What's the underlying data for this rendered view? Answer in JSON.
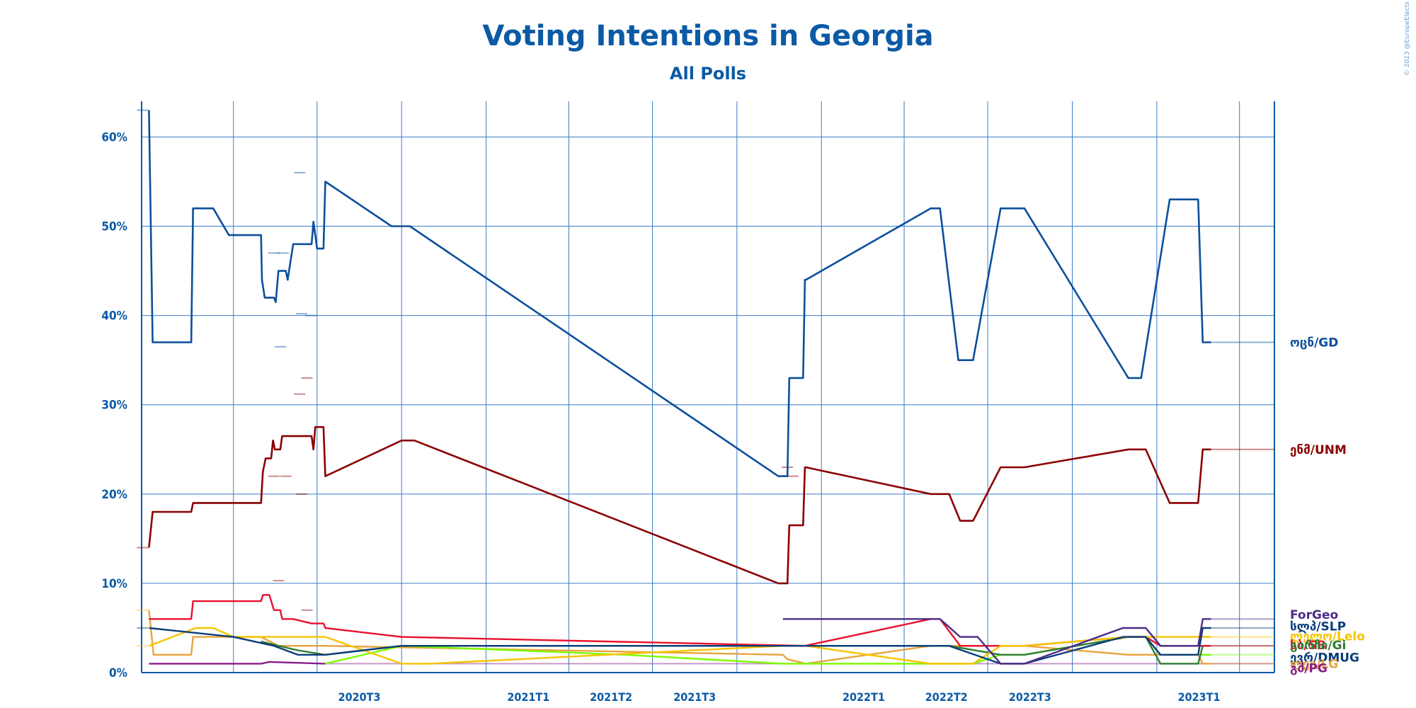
{
  "chart_data": {
    "type": "line",
    "title": "Voting Intentions in Georgia",
    "subtitle": "All Polls",
    "credit": "© 2023 @EuropeElects",
    "y_ticks": [
      "0%",
      "10%",
      "20%",
      "30%",
      "40%",
      "50%",
      "60%"
    ],
    "ylim": [
      0,
      64
    ],
    "x_ticks": [
      "2020T3",
      "2021T1",
      "2021T2",
      "2021T3",
      "2022T1",
      "2022T2",
      "2022T3",
      "2023T1"
    ],
    "x_tick_dates": [
      "2020-07-01",
      "2021-01-01",
      "2021-04-01",
      "2021-07-01",
      "2022-01-01",
      "2022-04-01",
      "2022-07-01",
      "2023-01-01"
    ],
    "x_gridline_dates": [
      "2020-04-01",
      "2020-07-01",
      "2020-10-01",
      "2021-01-01",
      "2021-04-01",
      "2021-07-01",
      "2021-10-01",
      "2022-01-01",
      "2022-04-01",
      "2022-07-01",
      "2022-10-01",
      "2023-01-01",
      "2023-04-01"
    ],
    "xlim": [
      "2019-12-23",
      "2023-05-09"
    ],
    "grid": true,
    "series": [
      {
        "name": "ოცნ/GD",
        "color": "#0b4f9c",
        "points": [
          [
            "2019-12-31",
            63
          ],
          [
            "2020-01-04",
            37
          ],
          [
            "2020-02-15",
            37
          ],
          [
            "2020-02-17",
            52
          ],
          [
            "2020-03-10",
            52
          ],
          [
            "2020-03-27",
            49
          ],
          [
            "2020-05-01",
            49
          ],
          [
            "2020-05-02",
            44
          ],
          [
            "2020-05-05",
            42
          ],
          [
            "2020-05-15",
            42
          ],
          [
            "2020-05-17",
            41.5
          ],
          [
            "2020-05-20",
            45
          ],
          [
            "2020-05-28",
            45
          ],
          [
            "2020-05-30",
            44
          ],
          [
            "2020-06-05",
            48
          ],
          [
            "2020-06-25",
            48
          ],
          [
            "2020-06-27",
            50.5
          ],
          [
            "2020-07-01",
            47.5
          ],
          [
            "2020-07-08",
            47.5
          ],
          [
            "2020-07-10",
            55
          ],
          [
            "2020-09-20",
            50
          ],
          [
            "2020-10-10",
            50
          ],
          [
            "2021-11-15",
            22
          ],
          [
            "2021-11-25",
            22
          ],
          [
            "2021-11-27",
            33
          ],
          [
            "2021-12-12",
            33
          ],
          [
            "2021-12-14",
            44
          ],
          [
            "2021-12-15",
            44
          ],
          [
            "2022-04-30",
            52
          ],
          [
            "2022-05-10",
            52
          ],
          [
            "2022-05-30",
            35
          ],
          [
            "2022-06-15",
            35
          ],
          [
            "2022-07-15",
            52
          ],
          [
            "2022-08-10",
            52
          ],
          [
            "2022-12-01",
            33
          ],
          [
            "2022-12-15",
            33
          ],
          [
            "2023-01-15",
            53
          ],
          [
            "2023-02-15",
            53
          ],
          [
            "2023-02-20",
            37
          ],
          [
            "2023-03-01",
            37
          ]
        ]
      },
      {
        "name": "ენმ/UNM",
        "color": "#8b0000",
        "points": [
          [
            "2019-12-31",
            14
          ],
          [
            "2020-01-04",
            18
          ],
          [
            "2020-02-15",
            18
          ],
          [
            "2020-02-17",
            19
          ],
          [
            "2020-05-01",
            19
          ],
          [
            "2020-05-03",
            22.5
          ],
          [
            "2020-05-06",
            24
          ],
          [
            "2020-05-12",
            24
          ],
          [
            "2020-05-14",
            26
          ],
          [
            "2020-05-16",
            25
          ],
          [
            "2020-05-22",
            25
          ],
          [
            "2020-05-24",
            26.5
          ],
          [
            "2020-06-05",
            26.5
          ],
          [
            "2020-06-25",
            26.5
          ],
          [
            "2020-06-27",
            25
          ],
          [
            "2020-06-29",
            27.5
          ],
          [
            "2020-07-08",
            27.5
          ],
          [
            "2020-07-10",
            22
          ],
          [
            "2020-10-01",
            26
          ],
          [
            "2020-10-15",
            26
          ],
          [
            "2021-11-15",
            10
          ],
          [
            "2021-11-25",
            10
          ],
          [
            "2021-11-27",
            16.5
          ],
          [
            "2021-12-12",
            16.5
          ],
          [
            "2021-12-14",
            23
          ],
          [
            "2021-12-15",
            23
          ],
          [
            "2022-04-30",
            20
          ],
          [
            "2022-05-20",
            20
          ],
          [
            "2022-06-01",
            17
          ],
          [
            "2022-06-15",
            17
          ],
          [
            "2022-07-15",
            23
          ],
          [
            "2022-08-10",
            23
          ],
          [
            "2022-12-01",
            25
          ],
          [
            "2022-12-20",
            25
          ],
          [
            "2023-01-15",
            19
          ],
          [
            "2023-02-15",
            19
          ],
          [
            "2023-02-20",
            25
          ],
          [
            "2023-03-01",
            25
          ]
        ]
      },
      {
        "name": "ForGeo",
        "color": "#4b2c88",
        "points": [
          [
            "2021-11-20",
            6
          ],
          [
            "2022-05-10",
            6
          ],
          [
            "2022-06-01",
            4
          ],
          [
            "2022-06-20",
            4
          ],
          [
            "2022-07-15",
            1
          ],
          [
            "2022-08-10",
            1
          ],
          [
            "2022-11-25",
            5
          ],
          [
            "2022-12-20",
            5
          ],
          [
            "2023-01-05",
            3
          ],
          [
            "2023-02-15",
            3
          ],
          [
            "2023-02-20",
            6
          ],
          [
            "2023-03-01",
            6
          ]
        ]
      },
      {
        "name": "სლპ/SLP",
        "color": "#0b3d7a",
        "points": [
          [
            "2019-12-31",
            5
          ],
          [
            "2020-04-01",
            4
          ],
          [
            "2020-05-15",
            3
          ],
          [
            "2020-06-10",
            2
          ],
          [
            "2020-07-10",
            2
          ],
          [
            "2020-10-01",
            3
          ],
          [
            "2022-05-20",
            3
          ],
          [
            "2022-07-15",
            1
          ],
          [
            "2022-08-10",
            1
          ],
          [
            "2022-11-25",
            4
          ],
          [
            "2022-12-20",
            4
          ],
          [
            "2023-01-05",
            2
          ],
          [
            "2023-02-15",
            2
          ],
          [
            "2023-02-20",
            5
          ],
          [
            "2023-03-01",
            5
          ]
        ]
      },
      {
        "name": "ლელო/Lelo",
        "color": "#f5c400",
        "points": [
          [
            "2019-12-31",
            3
          ],
          [
            "2020-02-20",
            5
          ],
          [
            "2020-03-10",
            5
          ],
          [
            "2020-04-01",
            4
          ],
          [
            "2020-06-01",
            4
          ],
          [
            "2020-07-10",
            4
          ],
          [
            "2020-10-01",
            1
          ],
          [
            "2020-11-01",
            1
          ],
          [
            "2021-11-20",
            3
          ],
          [
            "2021-12-15",
            3
          ],
          [
            "2022-04-30",
            1
          ],
          [
            "2022-06-15",
            1
          ],
          [
            "2022-07-15",
            3
          ],
          [
            "2022-08-10",
            3
          ],
          [
            "2022-12-01",
            4
          ],
          [
            "2022-12-20",
            4
          ],
          [
            "2023-01-15",
            4
          ],
          [
            "2023-03-01",
            4
          ]
        ]
      },
      {
        "name": "სბ/SB",
        "color": "#e8112d",
        "points": [
          [
            "2019-12-31",
            6
          ],
          [
            "2020-02-15",
            6
          ],
          [
            "2020-02-17",
            8
          ],
          [
            "2020-05-01",
            8
          ],
          [
            "2020-05-03",
            8.7
          ],
          [
            "2020-05-10",
            8.7
          ],
          [
            "2020-05-15",
            7
          ],
          [
            "2020-05-22",
            7
          ],
          [
            "2020-05-24",
            6
          ],
          [
            "2020-06-05",
            6
          ],
          [
            "2020-06-25",
            5.5
          ],
          [
            "2020-07-08",
            5.5
          ],
          [
            "2020-07-10",
            5
          ],
          [
            "2020-10-01",
            4
          ],
          [
            "2021-12-14",
            3
          ],
          [
            "2022-04-30",
            6
          ],
          [
            "2022-05-10",
            6
          ],
          [
            "2022-06-01",
            3
          ],
          [
            "2022-08-10",
            3
          ],
          [
            "2022-12-01",
            4
          ],
          [
            "2022-12-20",
            4
          ],
          [
            "2023-01-05",
            3
          ],
          [
            "2023-03-01",
            3
          ]
        ]
      },
      {
        "name": "გირჩი/Gi",
        "color": "#2e7d32",
        "points": [
          [
            "2020-05-01",
            3.5
          ],
          [
            "2020-05-20",
            3
          ],
          [
            "2020-06-10",
            2.5
          ],
          [
            "2020-07-10",
            2
          ],
          [
            "2020-10-01",
            3
          ],
          [
            "2022-05-20",
            3
          ],
          [
            "2022-07-15",
            2
          ],
          [
            "2022-08-10",
            2
          ],
          [
            "2022-12-01",
            4
          ],
          [
            "2022-12-20",
            4
          ],
          [
            "2023-01-05",
            1
          ],
          [
            "2023-02-15",
            1
          ],
          [
            "2023-02-20",
            3
          ],
          [
            "2023-03-01",
            3
          ]
        ]
      },
      {
        "name": "ევრ/DMUG",
        "color": "#7cfc00",
        "points": [
          [
            "2020-07-10",
            1
          ],
          [
            "2020-10-01",
            3
          ],
          [
            "2021-06-01",
            2
          ],
          [
            "2021-11-20",
            1
          ],
          [
            "2022-06-15",
            1
          ],
          [
            "2022-07-15",
            2
          ],
          [
            "2022-08-10",
            2
          ],
          [
            "2022-12-01",
            4
          ],
          [
            "2022-12-20",
            4
          ],
          [
            "2023-01-05",
            2
          ],
          [
            "2023-02-15",
            2
          ],
          [
            "2023-02-20",
            2
          ],
          [
            "2023-03-01",
            2
          ]
        ]
      },
      {
        "name": "ლეი/LG",
        "color": "#e8a33d",
        "points": [
          [
            "2019-12-31",
            7
          ],
          [
            "2020-01-05",
            2
          ],
          [
            "2020-02-15",
            2
          ],
          [
            "2020-02-17",
            4
          ],
          [
            "2020-05-01",
            4
          ],
          [
            "2020-05-20",
            3
          ],
          [
            "2020-07-10",
            3
          ],
          [
            "2021-11-20",
            2
          ],
          [
            "2021-11-25",
            1.5
          ],
          [
            "2021-12-15",
            1
          ],
          [
            "2022-04-30",
            3
          ],
          [
            "2022-08-10",
            3
          ],
          [
            "2022-12-01",
            2
          ],
          [
            "2022-12-20",
            2
          ],
          [
            "2023-01-05",
            2
          ],
          [
            "2023-02-15",
            2
          ],
          [
            "2023-02-20",
            1
          ],
          [
            "2023-03-01",
            1
          ]
        ]
      },
      {
        "name": "გძ/PG",
        "color": "#8a1c8a",
        "points": [
          [
            "2019-12-31",
            1
          ],
          [
            "2020-05-01",
            1
          ],
          [
            "2020-05-10",
            1.2
          ],
          [
            "2020-07-10",
            1
          ]
        ]
      }
    ],
    "scatter_points": [
      {
        "series": "ოცნ/GD",
        "values": [
          [
            "2019-12-24",
            63
          ],
          [
            "2020-05-15",
            47
          ],
          [
            "2020-05-25",
            47
          ],
          [
            "2020-05-22",
            36.5
          ],
          [
            "2020-06-12",
            56
          ],
          [
            "2020-06-14",
            40.2
          ],
          [
            "2020-06-24",
            40
          ]
        ]
      },
      {
        "series": "ენმ/UNM",
        "values": [
          [
            "2019-12-24",
            14
          ],
          [
            "2020-05-15",
            22
          ],
          [
            "2020-05-28",
            22
          ],
          [
            "2020-06-12",
            31.2
          ],
          [
            "2020-06-14",
            20
          ],
          [
            "2020-06-20",
            33
          ],
          [
            "2020-05-20",
            10.3
          ],
          [
            "2020-06-20",
            7
          ],
          [
            "2021-11-25",
            23
          ],
          [
            "2021-12-01",
            22
          ]
        ]
      },
      {
        "series": "სლპ/SLP",
        "values": [
          [
            "2019-12-24",
            5
          ]
        ]
      },
      {
        "series": "ლელო/Lelo",
        "values": [
          [
            "2019-12-24",
            3
          ],
          [
            "2019-12-24",
            7
          ]
        ]
      }
    ],
    "right_labels": [
      {
        "text": "ოცნ/GD",
        "color": "#0b4f9c",
        "value": 37
      },
      {
        "text": "ენმ/UNM",
        "color": "#8b0000",
        "value": 25
      },
      {
        "text": "ForGeo",
        "color": "#4b2c88",
        "value": 6.5
      },
      {
        "text": "სლპ/SLP",
        "color": "#0b3d7a",
        "value": 5.2
      },
      {
        "text": "ლელო/Lelo",
        "color": "#f5c400",
        "value": 4.1
      },
      {
        "text": "სბ/SB",
        "color": "#e8112d",
        "value": 3.1
      },
      {
        "text": "გირჩი/Gi",
        "color": "#2e7d32",
        "value": 3.1
      },
      {
        "text": "ევრ/DMUG",
        "color": "#0b3d7a",
        "value": 1.7
      },
      {
        "text": "ლეი/LG",
        "color": "#e8a33d",
        "value": 1.0
      },
      {
        "text": "გძ/PG",
        "color": "#8a1c8a",
        "value": 0.5
      }
    ]
  }
}
